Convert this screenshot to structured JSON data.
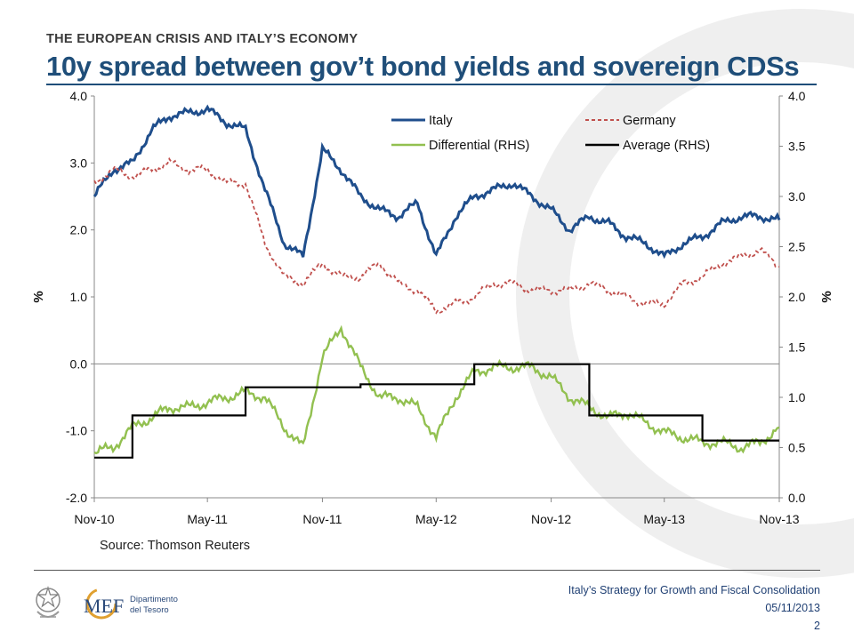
{
  "header": "THE EUROPEAN CRISIS AND ITALY’S ECONOMY",
  "title": "10y spread between gov’t bond yields and sovereign CDSs",
  "source": "Source: Thomson Reuters",
  "footer": {
    "line1": "Italy’s Strategy for Growth and Fiscal Consolidation",
    "line2": "05/11/2013",
    "page": "2"
  },
  "logo": {
    "mef": "MEF",
    "dept_line1": "Dipartimento",
    "dept_line2": "del Tesoro"
  },
  "colors": {
    "italy": "#1f4e8c",
    "germany": "#c0504d",
    "differential": "#92c050",
    "average": "#000000",
    "title": "#1f4e79"
  },
  "chart_data": {
    "type": "line",
    "x": [
      "2010-11-01",
      "2010-12-01",
      "2011-01-01",
      "2011-02-01",
      "2011-03-01",
      "2011-04-01",
      "2011-05-01",
      "2011-06-01",
      "2011-07-01",
      "2011-08-01",
      "2011-09-01",
      "2011-10-01",
      "2011-11-01",
      "2011-12-01",
      "2012-01-01",
      "2012-02-01",
      "2012-03-01",
      "2012-04-01",
      "2012-05-01",
      "2012-06-01",
      "2012-07-01",
      "2012-08-01",
      "2012-09-01",
      "2012-10-01",
      "2012-11-01",
      "2012-12-01",
      "2013-01-01",
      "2013-02-01",
      "2013-03-01",
      "2013-04-01",
      "2013-05-01",
      "2013-06-01",
      "2013-07-01",
      "2013-08-01",
      "2013-09-01",
      "2013-10-01",
      "2013-11-01"
    ],
    "x_tick_labels": [
      "Nov-10",
      "May-11",
      "Nov-11",
      "May-12",
      "Nov-12",
      "May-13",
      "Nov-13"
    ],
    "y_left": {
      "label": "%",
      "ylim": [
        -2.0,
        4.0
      ],
      "ticks": [
        "4.0",
        "3.0",
        "2.0",
        "1.0",
        "0.0",
        "-1.0",
        "-2.0"
      ]
    },
    "y_right": {
      "label": "%",
      "ylim": [
        0.0,
        4.0
      ],
      "ticks": [
        "4.0",
        "3.5",
        "3.0",
        "2.5",
        "2.0",
        "1.5",
        "1.0",
        "0.5",
        "0.0"
      ]
    },
    "legend": {
      "placement": "top",
      "entries": [
        "Italy",
        "Germany",
        "Differential (RHS)",
        "Average (RHS)"
      ]
    },
    "series": [
      {
        "name": "Italy",
        "axis": "left",
        "style": "solid-thick",
        "values": [
          2.5,
          2.9,
          3.0,
          3.5,
          3.7,
          3.75,
          3.8,
          3.6,
          3.5,
          2.6,
          1.8,
          1.6,
          3.2,
          2.9,
          2.5,
          2.3,
          2.2,
          2.4,
          1.6,
          2.2,
          2.5,
          2.6,
          2.7,
          2.5,
          2.3,
          2.0,
          2.2,
          2.1,
          1.9,
          1.8,
          1.6,
          1.8,
          1.9,
          2.1,
          2.2,
          2.2,
          2.15
        ]
      },
      {
        "name": "Germany",
        "axis": "left",
        "style": "dashed",
        "values": [
          2.7,
          2.9,
          2.8,
          2.9,
          3.0,
          2.9,
          2.9,
          2.7,
          2.7,
          1.8,
          1.3,
          1.2,
          1.5,
          1.3,
          1.3,
          1.5,
          1.2,
          1.1,
          0.8,
          0.9,
          1.0,
          1.2,
          1.2,
          1.1,
          1.1,
          1.1,
          1.2,
          1.1,
          1.0,
          0.9,
          0.9,
          1.2,
          1.3,
          1.5,
          1.6,
          1.7,
          1.45
        ]
      },
      {
        "name": "Differential (RHS)",
        "axis": "right",
        "style": "solid",
        "values": [
          0.45,
          0.5,
          0.7,
          0.8,
          0.9,
          0.9,
          0.95,
          1.0,
          1.05,
          1.0,
          0.7,
          0.5,
          1.4,
          1.7,
          1.3,
          1.0,
          1.0,
          0.9,
          0.6,
          1.0,
          1.25,
          1.3,
          1.3,
          1.3,
          1.2,
          1.0,
          0.9,
          0.8,
          0.85,
          0.75,
          0.65,
          0.6,
          0.55,
          0.55,
          0.5,
          0.55,
          0.7
        ]
      },
      {
        "name": "Average (RHS)",
        "axis": "right",
        "style": "step",
        "steps": [
          {
            "from": "2010-11-01",
            "to": "2011-01-01",
            "value": 0.4
          },
          {
            "from": "2011-01-01",
            "to": "2011-07-01",
            "value": 0.82
          },
          {
            "from": "2011-07-01",
            "to": "2012-01-01",
            "value": 1.1
          },
          {
            "from": "2012-01-01",
            "to": "2012-07-01",
            "value": 1.13
          },
          {
            "from": "2012-07-01",
            "to": "2013-01-01",
            "value": 1.33
          },
          {
            "from": "2013-01-01",
            "to": "2013-07-01",
            "value": 0.82
          },
          {
            "from": "2013-07-01",
            "to": "2013-11-01",
            "value": 0.57
          }
        ]
      }
    ]
  }
}
